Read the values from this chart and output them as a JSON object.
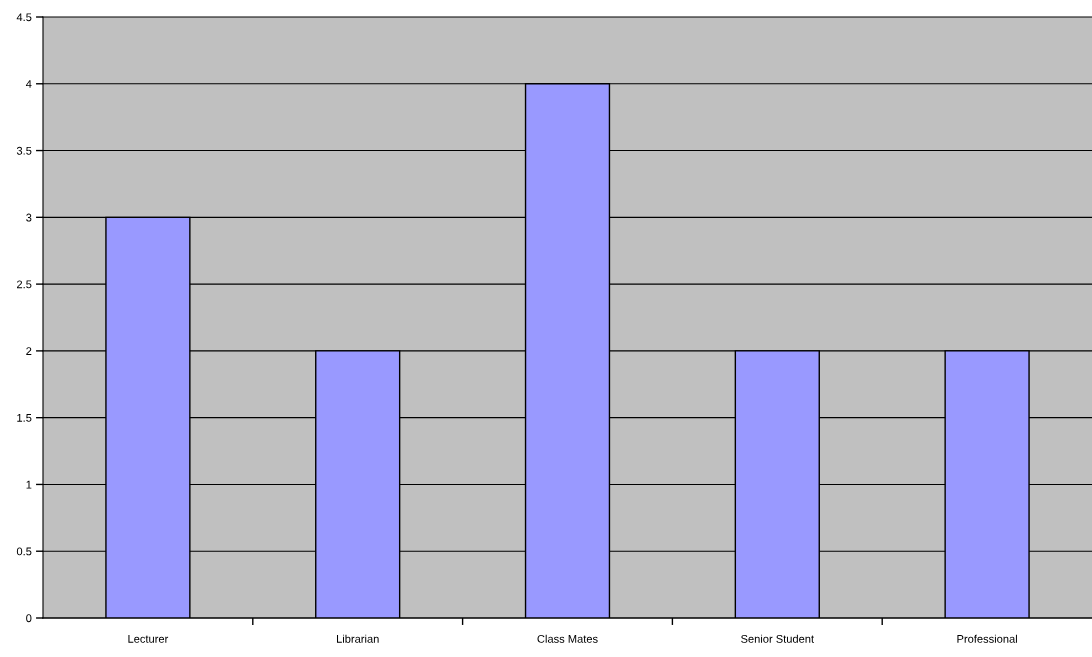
{
  "chart_data": {
    "type": "bar",
    "categories": [
      "Lecturer",
      "Librarian",
      "Class Mates",
      "Senior Student",
      "Professional"
    ],
    "values": [
      3,
      2,
      4,
      2,
      2
    ],
    "color": "#9999ff",
    "ylim": [
      0,
      4.5
    ],
    "yticks": [
      0,
      0.5,
      1,
      1.5,
      2,
      2.5,
      3,
      3.5,
      4,
      4.5
    ],
    "grid": "y",
    "legend": false
  }
}
